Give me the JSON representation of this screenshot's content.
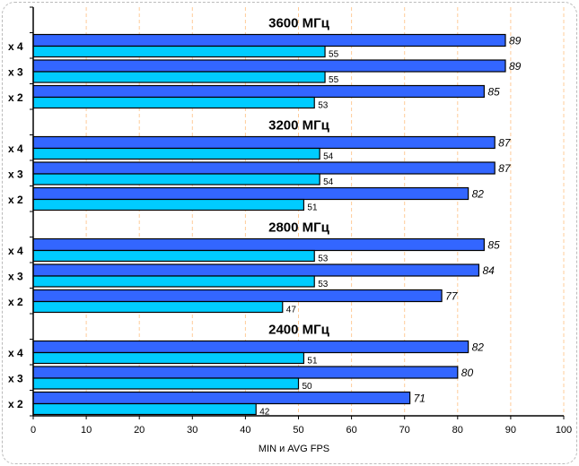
{
  "chart_data": {
    "type": "bar",
    "orientation": "horizontal",
    "xlabel": "MIN и AVG FPS",
    "xlim": [
      0,
      100
    ],
    "xticks": [
      "0",
      "10",
      "20",
      "30",
      "40",
      "50",
      "60",
      "70",
      "80",
      "90",
      "100"
    ],
    "grid": true,
    "colors": {
      "avg": "#3366FF",
      "min": "#00CCFF",
      "grid": "#FFCC99"
    },
    "groups": [
      {
        "title": "3600 МГц",
        "rows": [
          {
            "label": "x 4",
            "avg": 89,
            "min": 55
          },
          {
            "label": "x 3",
            "avg": 89,
            "min": 55
          },
          {
            "label": "x 2",
            "avg": 85,
            "min": 53
          }
        ]
      },
      {
        "title": "3200 МГц",
        "rows": [
          {
            "label": "x 4",
            "avg": 87,
            "min": 54
          },
          {
            "label": "x 3",
            "avg": 87,
            "min": 54
          },
          {
            "label": "x 2",
            "avg": 82,
            "min": 51
          }
        ]
      },
      {
        "title": "2800 МГц",
        "rows": [
          {
            "label": "x 4",
            "avg": 85,
            "min": 53
          },
          {
            "label": "x 3",
            "avg": 84,
            "min": 53
          },
          {
            "label": "x 2",
            "avg": 77,
            "min": 47
          }
        ]
      },
      {
        "title": "2400 МГц",
        "rows": [
          {
            "label": "x 4",
            "avg": 82,
            "min": 51
          },
          {
            "label": "x 3",
            "avg": 80,
            "min": 50
          },
          {
            "label": "x 2",
            "avg": 71,
            "min": 42
          }
        ]
      }
    ]
  }
}
